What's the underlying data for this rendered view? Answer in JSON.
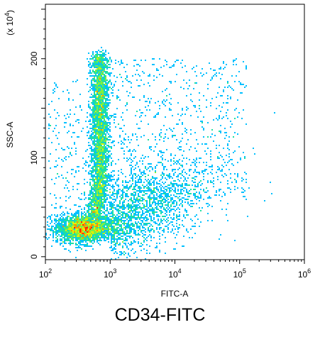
{
  "chart_data": {
    "type": "scatter",
    "subtype": "density-dot-plot",
    "title": "",
    "caption": "CD34-FITC",
    "xlabel": "FITC-A",
    "ylabel": "SSC-A",
    "y_multiplier_label": "(x 10",
    "y_multiplier_exponent": "4",
    "y_multiplier_close": ")",
    "x_scale": "log",
    "xlim": [
      100,
      1000000
    ],
    "ylim": [
      -3,
      255
    ],
    "x_ticks": [
      {
        "value": 100,
        "base": "10",
        "exp": "2"
      },
      {
        "value": 1000,
        "base": "10",
        "exp": "3"
      },
      {
        "value": 10000,
        "base": "10",
        "exp": "4"
      },
      {
        "value": 100000,
        "base": "10",
        "exp": "5"
      },
      {
        "value": 1000000,
        "base": "10",
        "exp": "6"
      }
    ],
    "y_ticks": [
      {
        "value": 0,
        "label": "0"
      },
      {
        "value": 100,
        "label": "100"
      },
      {
        "value": 200,
        "label": "200"
      }
    ],
    "grid": false,
    "legend": "none",
    "density_colormap": [
      "#0000cc",
      "#0070ff",
      "#00c0ff",
      "#20e0a0",
      "#80f040",
      "#e8f000",
      "#ff9000",
      "#ff2000"
    ],
    "populations": [
      {
        "id": "low-ssc-cluster",
        "x_range": [
          120,
          1100
        ],
        "y_range": [
          15,
          45
        ],
        "peak_x": 400,
        "peak_y": 28
      },
      {
        "id": "vertical-stalk",
        "x_range": [
          400,
          1500
        ],
        "y_range": [
          40,
          205
        ],
        "peak_x": 700,
        "peak_y": 135
      },
      {
        "id": "right-tail",
        "x_range": [
          1000,
          200000
        ],
        "y_range": [
          20,
          200
        ],
        "peak_x": 8000,
        "peak_y": 70
      }
    ]
  }
}
